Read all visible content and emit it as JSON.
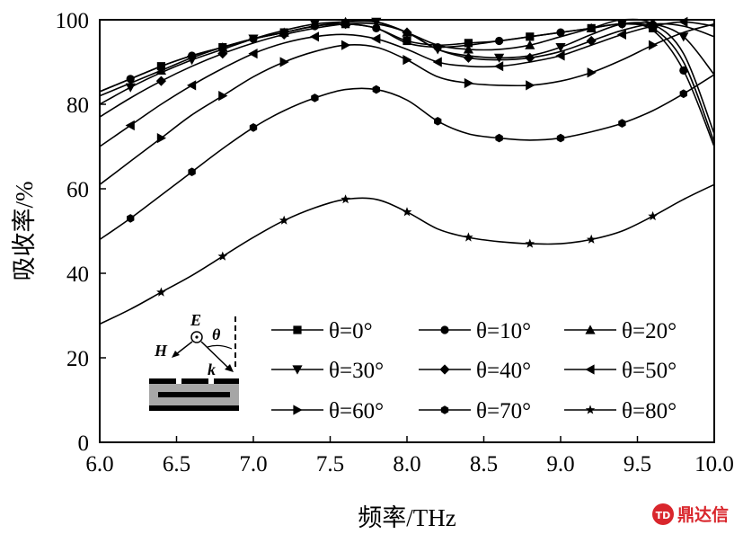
{
  "chart_data": {
    "type": "line",
    "xlabel": "频率/THz",
    "ylabel": "吸收率/%",
    "xlim": [
      6.0,
      10.0
    ],
    "ylim": [
      0,
      100
    ],
    "x_ticks": [
      "6.0",
      "6.5",
      "7.0",
      "7.5",
      "8.0",
      "8.5",
      "9.0",
      "9.5",
      "10.0"
    ],
    "y_ticks": [
      "0",
      "20",
      "40",
      "60",
      "80",
      "100"
    ],
    "grid": false,
    "legend_position": "bottom-right, 3 columns",
    "x": [
      6.0,
      6.2,
      6.4,
      6.6,
      6.8,
      7.0,
      7.2,
      7.4,
      7.6,
      7.8,
      8.0,
      8.2,
      8.4,
      8.6,
      8.8,
      9.0,
      9.2,
      9.4,
      9.6,
      9.8,
      10.0
    ],
    "series": [
      {
        "name": "θ=0°",
        "marker": "square",
        "values": [
          83,
          86,
          89,
          91.5,
          93.5,
          95.5,
          97,
          98.5,
          99,
          98,
          95,
          94,
          94.5,
          95,
          96,
          97,
          98,
          99,
          98,
          90,
          71
        ]
      },
      {
        "name": "θ=10°",
        "marker": "circle",
        "values": [
          83,
          86,
          89,
          91.5,
          93.5,
          95.5,
          97,
          98.5,
          99,
          98,
          94.5,
          93.5,
          94,
          95,
          96,
          97,
          98,
          99,
          97.5,
          88,
          70
        ]
      },
      {
        "name": "θ=20°",
        "marker": "triangle-up",
        "values": [
          82,
          85,
          88,
          91,
          93.5,
          95.5,
          97,
          98.5,
          99.5,
          99.5,
          97,
          94,
          93,
          93,
          94,
          96,
          98,
          100,
          99,
          92,
          73
        ]
      },
      {
        "name": "θ=30°",
        "marker": "triangle-down",
        "values": [
          80,
          84,
          87.5,
          90.5,
          93,
          95.5,
          97.5,
          99,
          99.5,
          99.5,
          97,
          93,
          91.5,
          91,
          91.5,
          93.5,
          96.5,
          99,
          99,
          96,
          87
        ]
      },
      {
        "name": "θ=40°",
        "marker": "diamond",
        "values": [
          77,
          81.5,
          85.5,
          89,
          92,
          94.5,
          96.5,
          98,
          99,
          99,
          97,
          93,
          91,
          90.5,
          91,
          92.5,
          95,
          97.5,
          99,
          98.5,
          96
        ]
      },
      {
        "name": "θ=50°",
        "marker": "triangle-left",
        "values": [
          70,
          75,
          80,
          84.5,
          88.5,
          92,
          94.5,
          96,
          96.5,
          95.5,
          93,
          90,
          89,
          89,
          90,
          91.5,
          94,
          96.5,
          98.5,
          99.5,
          98.5
        ]
      },
      {
        "name": "θ=60°",
        "marker": "triangle-right",
        "values": [
          61,
          66.5,
          72,
          77.5,
          82,
          86.5,
          90,
          92.5,
          94,
          93.5,
          90.5,
          86.5,
          85,
          84.5,
          84.5,
          85.5,
          87.5,
          90.5,
          94,
          97,
          99
        ]
      },
      {
        "name": "θ=70°",
        "marker": "hexagon",
        "values": [
          48,
          53,
          58.5,
          64,
          69.5,
          74.5,
          78.5,
          81.5,
          83.5,
          83.5,
          81,
          76,
          73,
          72,
          71.5,
          72,
          73.5,
          75.5,
          78.5,
          82.5,
          87
        ]
      },
      {
        "name": "θ=80°",
        "marker": "star",
        "values": [
          28,
          31.5,
          35.5,
          39.5,
          44,
          48.5,
          52.5,
          55.5,
          57.5,
          57.5,
          54.5,
          50.5,
          48.5,
          47.5,
          47,
          47,
          48,
          50,
          53.5,
          57.5,
          61
        ]
      }
    ],
    "inset": {
      "labels": [
        "E",
        "θ",
        "H",
        "k"
      ]
    }
  },
  "watermark": {
    "text": "鼎达信",
    "logo_glyph": "TD",
    "color": "#d9262c"
  }
}
